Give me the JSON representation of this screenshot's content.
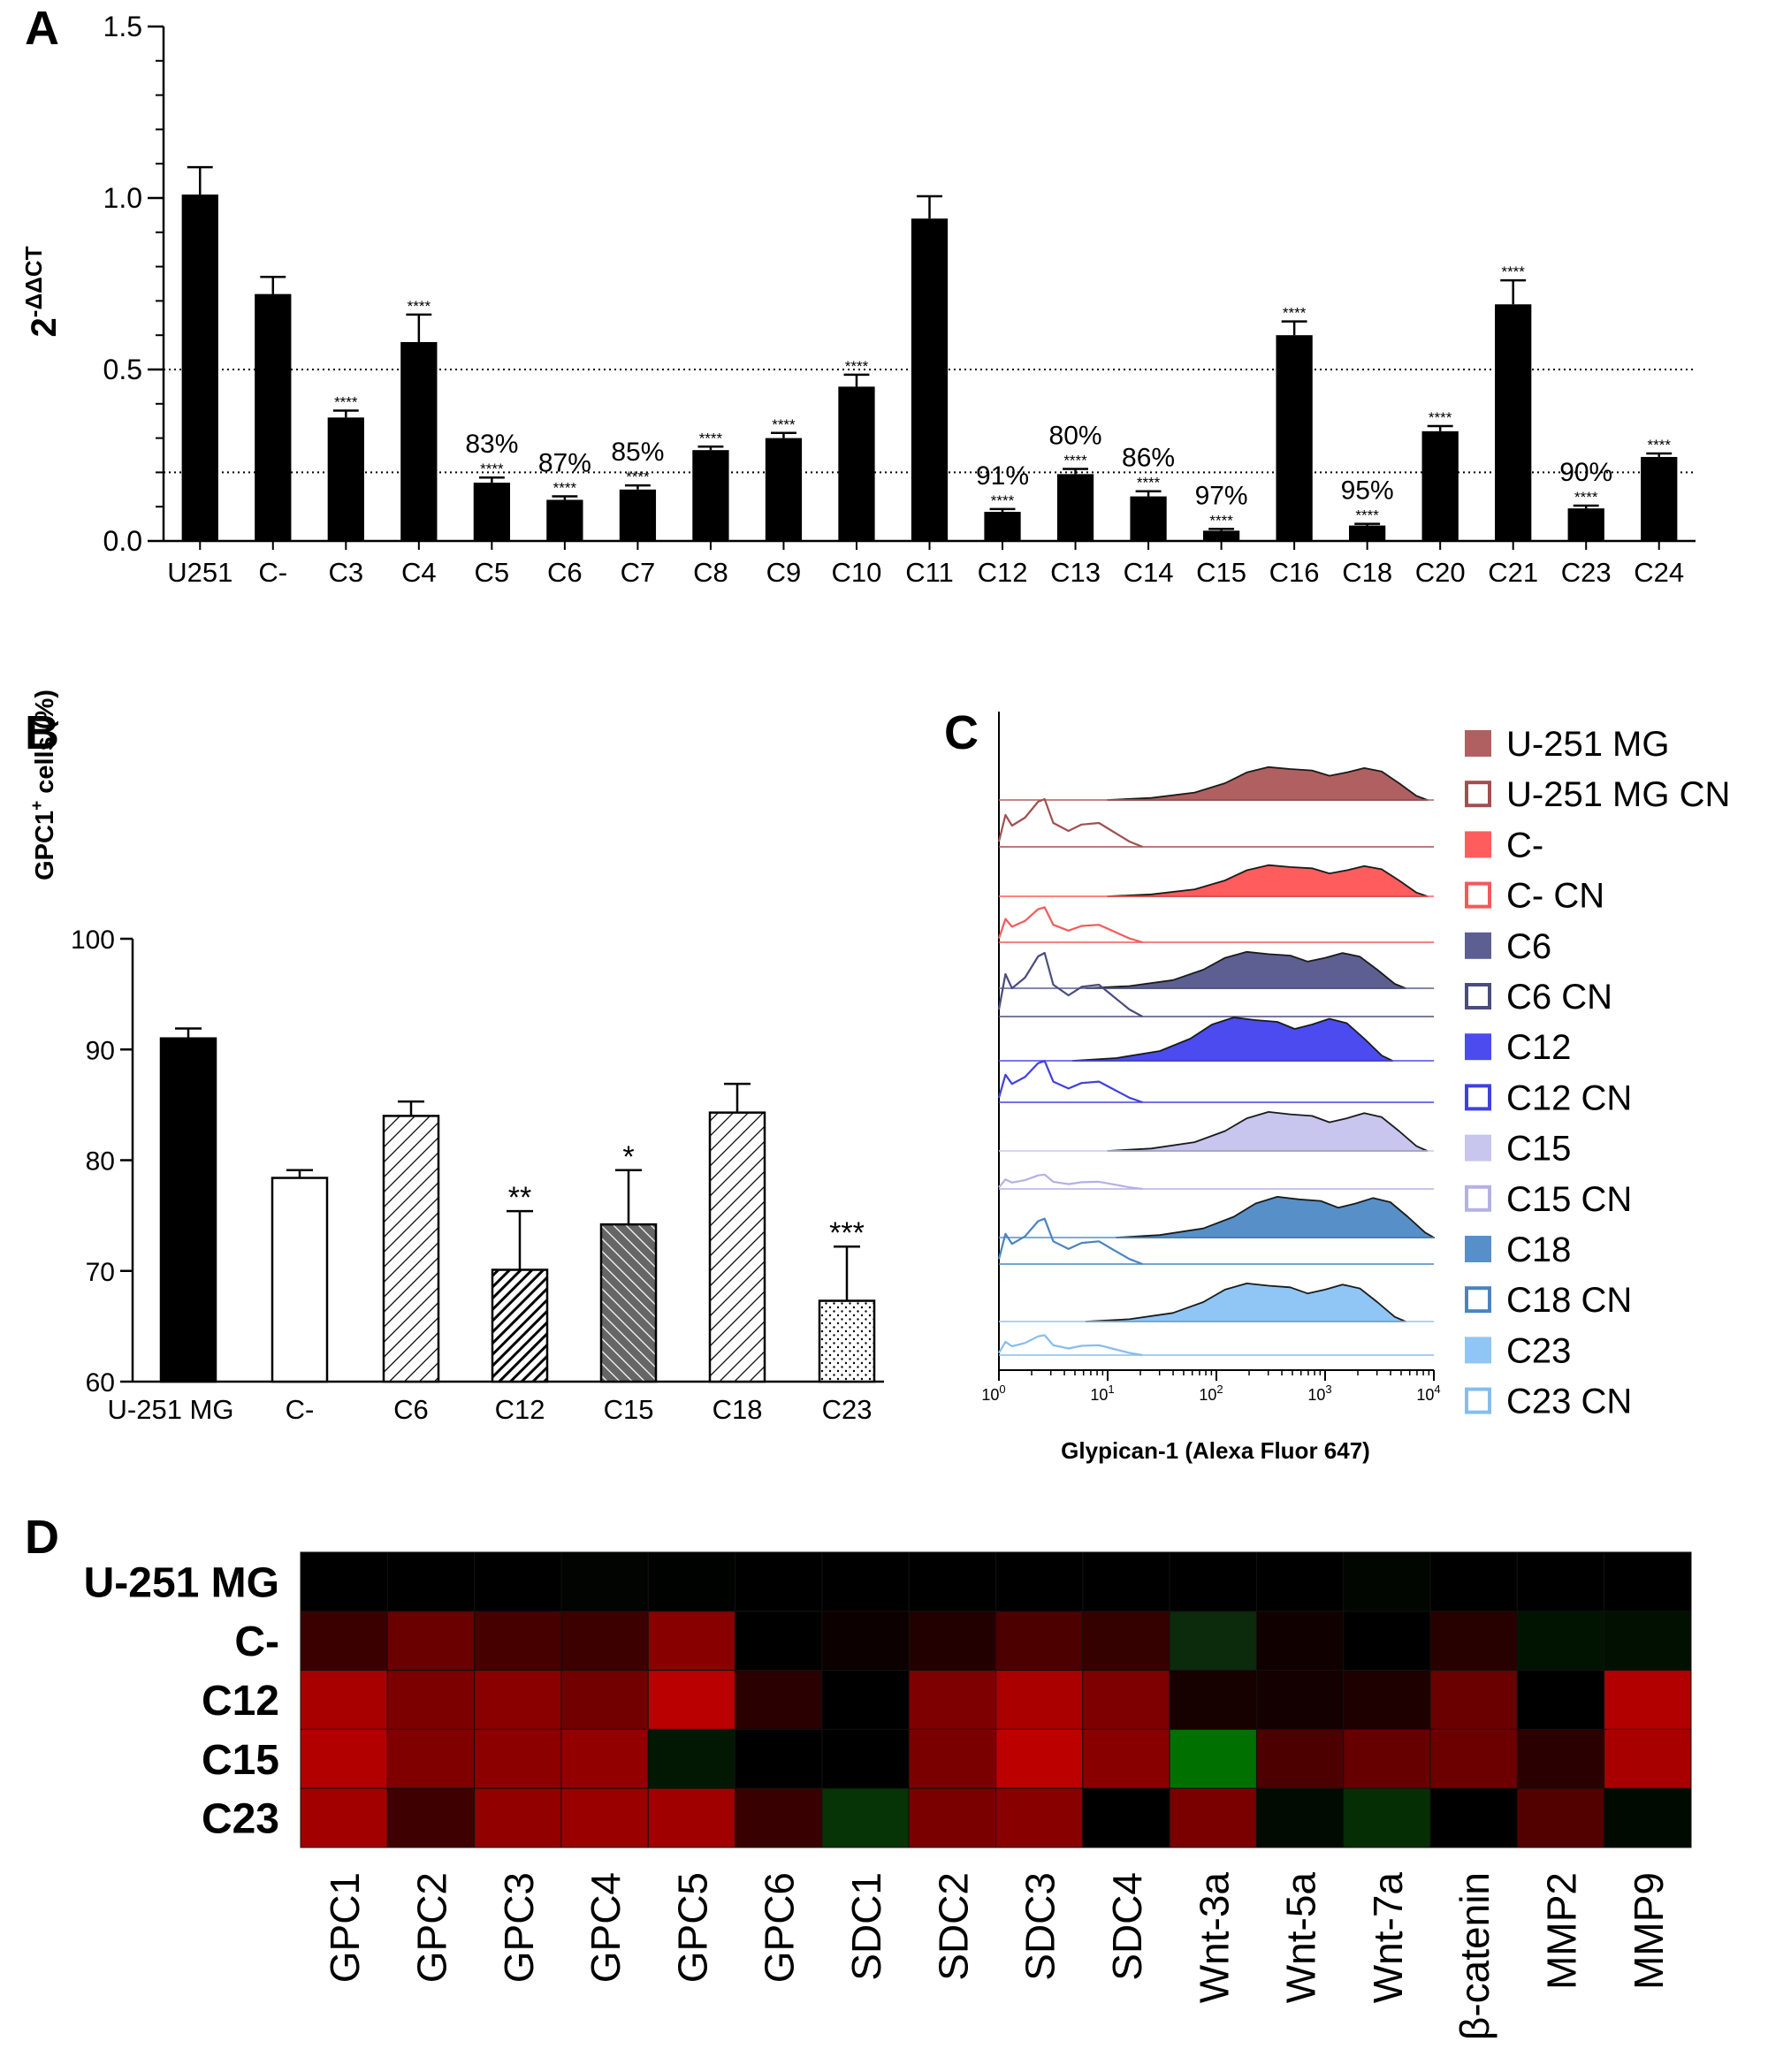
{
  "panels": {
    "a": "A",
    "b": "B",
    "c": "C",
    "d": "D"
  },
  "chart_data": [
    {
      "type": "bar",
      "panel": "A",
      "ylabel_base": "2",
      "ylabel_sup": "-ΔΔCT",
      "ylim": [
        0,
        1.5
      ],
      "yticks": [
        "0.0",
        "0.5",
        "1.0",
        "1.5"
      ],
      "yticks_values": [
        0,
        0.5,
        1.0,
        1.5
      ],
      "reference_lines": [
        0.5,
        0.2
      ],
      "categories": [
        "U251",
        "C-",
        "C3",
        "C4",
        "C5",
        "C6",
        "C7",
        "C8",
        "C9",
        "C10",
        "C11",
        "C12",
        "C13",
        "C14",
        "C15",
        "C16",
        "C18",
        "C20",
        "C21",
        "C23",
        "C24"
      ],
      "values": [
        1.01,
        0.72,
        0.36,
        0.58,
        0.17,
        0.12,
        0.15,
        0.265,
        0.3,
        0.45,
        0.94,
        0.085,
        0.195,
        0.13,
        0.03,
        0.6,
        0.045,
        0.32,
        0.69,
        0.095,
        0.245
      ],
      "errors": [
        0.08,
        0.05,
        0.02,
        0.08,
        0.015,
        0.01,
        0.012,
        0.01,
        0.015,
        0.035,
        0.065,
        0.008,
        0.015,
        0.015,
        0.005,
        0.04,
        0.005,
        0.015,
        0.07,
        0.008,
        0.01
      ],
      "significance": [
        "",
        "",
        "****",
        "****",
        "****",
        "****",
        "****",
        "****",
        "****",
        "****",
        "",
        "****",
        "****",
        "****",
        "****",
        "****",
        "****",
        "****",
        "****",
        "****",
        "****"
      ],
      "annotations": [
        "",
        "",
        "",
        "",
        "83%",
        "87%",
        "85%",
        "",
        "",
        "",
        "",
        "91%",
        "80%",
        "86%",
        "97%",
        "",
        "95%",
        "",
        "",
        "90%",
        ""
      ]
    },
    {
      "type": "bar",
      "panel": "B",
      "ylabel_main": "GPC1",
      "ylabel_sup": "+",
      "ylabel_rest": " cells (%)",
      "ylim": [
        60,
        100
      ],
      "yticks": [
        "60",
        "70",
        "80",
        "90",
        "100"
      ],
      "yticks_values": [
        60,
        70,
        80,
        90,
        100
      ],
      "categories": [
        "U-251 MG",
        "C-",
        "C6",
        "C12",
        "C15",
        "C18",
        "C23"
      ],
      "values": [
        91.0,
        78.4,
        84.0,
        70.1,
        74.2,
        84.3,
        67.3
      ],
      "errors": [
        0.9,
        0.7,
        1.3,
        5.3,
        4.9,
        2.6,
        4.9
      ],
      "significance": [
        "",
        "",
        "",
        "**",
        "*",
        "",
        "***"
      ],
      "fills": [
        "solid-black",
        "white",
        "hatch-light",
        "hatch-dense",
        "hatch-gray",
        "hatch-light",
        "dots"
      ]
    },
    {
      "type": "histogram",
      "panel": "C",
      "xlabel": "Glypican-1 (Alexa Fluor 647)",
      "xticks": [
        {
          "base": "10",
          "exp": "0"
        },
        {
          "base": "10",
          "exp": "1"
        },
        {
          "base": "10",
          "exp": "2"
        },
        {
          "base": "10",
          "exp": "3"
        },
        {
          "base": "10",
          "exp": "4"
        }
      ],
      "series": [
        {
          "name": "U-251 MG",
          "color": "#b06060",
          "filled": true
        },
        {
          "name": "U-251 MG CN",
          "color": "#a05050",
          "filled": false
        },
        {
          "name": "C-",
          "color": "#ff5d5d",
          "filled": true
        },
        {
          "name": "C- CN",
          "color": "#f25a5a",
          "filled": false
        },
        {
          "name": "C6",
          "color": "#5d5f92",
          "filled": true
        },
        {
          "name": "C6 CN",
          "color": "#4a4c80",
          "filled": false
        },
        {
          "name": "C12",
          "color": "#4b4bf0",
          "filled": true
        },
        {
          "name": "C12 CN",
          "color": "#4040e0",
          "filled": false
        },
        {
          "name": "C15",
          "color": "#c8c5ef",
          "filled": true
        },
        {
          "name": "C15 CN",
          "color": "#b5b0e6",
          "filled": false
        },
        {
          "name": "C18",
          "color": "#5790c8",
          "filled": true
        },
        {
          "name": "C18 CN",
          "color": "#4a84bd",
          "filled": false
        },
        {
          "name": "C23",
          "color": "#8fc6f5",
          "filled": true
        },
        {
          "name": "C23 CN",
          "color": "#85bdf0",
          "filled": false
        }
      ]
    },
    {
      "type": "heatmap",
      "panel": "D",
      "rows": [
        "U-251 MG",
        "C-",
        "C12",
        "C15",
        "C23"
      ],
      "columns": [
        "GPC1",
        "GPC2",
        "GPC3",
        "GPC4",
        "GPC5",
        "GPC6",
        "SDC1",
        "SDC2",
        "SDC3",
        "SDC4",
        "Wnt-3a",
        "Wnt-5a",
        "Wnt-7a",
        "β-catenin",
        "MMP2",
        "MMP9"
      ],
      "colors": [
        [
          "#000000",
          "#000000",
          "#000000",
          "#010401",
          "#000200",
          "#000000",
          "#000000",
          "#000000",
          "#000000",
          "#000000",
          "#000000",
          "#000000",
          "#010601",
          "#000000",
          "#000000",
          "#000000"
        ],
        [
          "#3a0000",
          "#6a0000",
          "#460000",
          "#3c0000",
          "#880000",
          "#000000",
          "#0c0000",
          "#230000",
          "#4c0000",
          "#340000",
          "#0c2a0c",
          "#110000",
          "#000000",
          "#270000",
          "#011401",
          "#011001"
        ],
        [
          "#a80000",
          "#7c0000",
          "#8a0000",
          "#720000",
          "#ba0000",
          "#2a0000",
          "#000000",
          "#7e0000",
          "#aa0000",
          "#7e0000",
          "#170000",
          "#140000",
          "#1e0000",
          "#6a0000",
          "#000000",
          "#b20000"
        ],
        [
          "#b20000",
          "#800000",
          "#8c0000",
          "#920000",
          "#031803",
          "#000000",
          "#000000",
          "#7a0000",
          "#bc0000",
          "#880000",
          "#007000",
          "#4c0000",
          "#660000",
          "#6c0000",
          "#2a0000",
          "#a80000"
        ],
        [
          "#a20000",
          "#3e0000",
          "#920000",
          "#9a0000",
          "#a00000",
          "#380000",
          "#063406",
          "#7a0000",
          "#880000",
          "#000000",
          "#7a0000",
          "#010b01",
          "#052e05",
          "#000000",
          "#520000",
          "#010a01"
        ]
      ]
    }
  ]
}
